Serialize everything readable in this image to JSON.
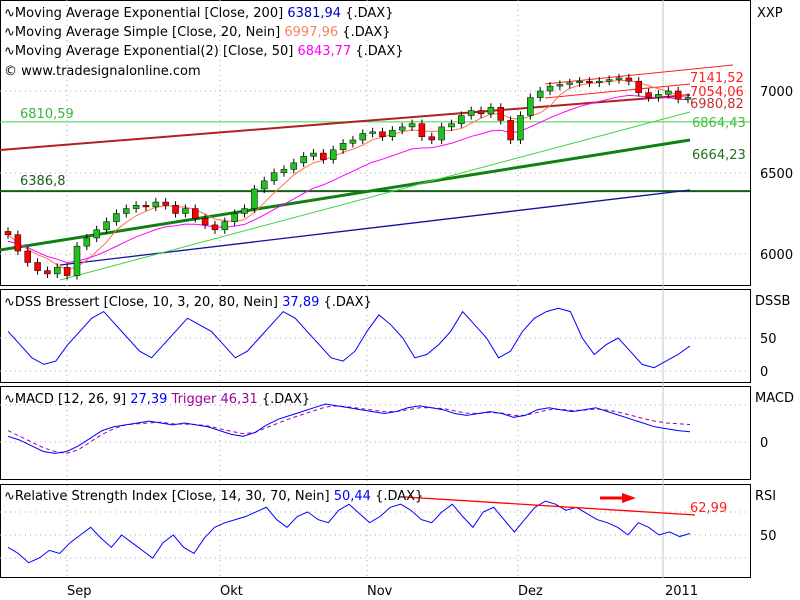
{
  "legend": [
    {
      "name": "Moving Average Exponential [Close, 200]",
      "value": "6381,94",
      "suffix": "{.DAX}",
      "color": "#0000c0"
    },
    {
      "name": "Moving Average Simple [Close, 20, Nein]",
      "value": "6997,96",
      "suffix": "{.DAX}",
      "color": "#ff8060"
    },
    {
      "name": "Moving Average Exponential(2) [Close, 50]",
      "value": "6843,77",
      "suffix": "{.DAX}",
      "color": "#ff00ff"
    }
  ],
  "copyright": "© www.tradesignalonline.com",
  "main": {
    "axis_title": "XXP",
    "ticks": [
      "7000",
      "6500",
      "6000"
    ],
    "labels": {
      "l1": "7141,52",
      "l2": "7054,06",
      "l3": "6980,82",
      "l4": "6864,43",
      "l5": "6664,23",
      "h1": "6810,59",
      "h2": "6386,8"
    }
  },
  "dss": {
    "title": "DSS Bressert [Close, 10, 3, 20, 80, Nein]",
    "value": "37,89",
    "suffix": "{.DAX}",
    "axis_title": "DSSB",
    "ticks": [
      "50",
      "0"
    ]
  },
  "macd": {
    "title": "MACD [12, 26, 9]",
    "value": "27,39",
    "trigger_label": "Trigger",
    "trigger": "46,31",
    "suffix": "{.DAX}",
    "axis_title": "MACD",
    "ticks": [
      "0"
    ]
  },
  "rsi": {
    "title": "Relative Strength Index [Close, 14, 30, 70, Nein]",
    "value": "50,44",
    "suffix": "{.DAX}",
    "axis_title": "RSI",
    "ticks": [
      "50"
    ],
    "trend_label": "62,99"
  },
  "xaxis": [
    "Sep",
    "Okt",
    "Nov",
    "Dez",
    "2011"
  ],
  "chart_data": {
    "type": "candlestick",
    "closes": [
      6120,
      6020,
      5950,
      5900,
      5880,
      5920,
      5870,
      6050,
      6100,
      6150,
      6200,
      6250,
      6280,
      6300,
      6290,
      6320,
      6300,
      6250,
      6280,
      6220,
      6180,
      6150,
      6200,
      6250,
      6280,
      6400,
      6450,
      6500,
      6520,
      6560,
      6600,
      6620,
      6580,
      6640,
      6680,
      6700,
      6740,
      6750,
      6720,
      6760,
      6780,
      6800,
      6720,
      6700,
      6780,
      6800,
      6850,
      6880,
      6860,
      6900,
      6820,
      6700,
      6850,
      6960,
      7000,
      7030,
      7040,
      7050,
      7060,
      7050,
      7060,
      7070,
      7080,
      7060,
      6990,
      6960,
      6980,
      7000,
      6950,
      6960
    ],
    "dss": [
      60,
      40,
      20,
      10,
      15,
      40,
      60,
      80,
      90,
      70,
      50,
      30,
      20,
      40,
      60,
      80,
      70,
      60,
      40,
      20,
      30,
      50,
      70,
      90,
      80,
      60,
      40,
      20,
      15,
      30,
      60,
      85,
      70,
      50,
      20,
      25,
      40,
      60,
      90,
      70,
      50,
      20,
      30,
      60,
      80,
      90,
      95,
      90,
      50,
      25,
      40,
      50,
      30,
      10,
      5,
      15,
      25,
      38
    ],
    "macd": [
      15,
      5,
      -10,
      -25,
      -30,
      -25,
      -10,
      10,
      30,
      40,
      45,
      50,
      55,
      50,
      45,
      50,
      45,
      40,
      30,
      20,
      15,
      25,
      45,
      60,
      70,
      80,
      90,
      100,
      95,
      90,
      85,
      80,
      75,
      80,
      90,
      95,
      90,
      85,
      75,
      70,
      75,
      80,
      75,
      65,
      70,
      85,
      90,
      85,
      80,
      85,
      90,
      80,
      70,
      60,
      50,
      40,
      35,
      30,
      27
    ],
    "macd_trigger": [
      30,
      15,
      0,
      -15,
      -25,
      -30,
      -20,
      0,
      20,
      35,
      45,
      48,
      50,
      52,
      48,
      47,
      46,
      42,
      35,
      28,
      22,
      25,
      38,
      50,
      62,
      72,
      82,
      92,
      95,
      92,
      88,
      84,
      80,
      80,
      85,
      90,
      90,
      88,
      82,
      76,
      75,
      78,
      76,
      70,
      70,
      78,
      85,
      86,
      83,
      84,
      87,
      84,
      78,
      70,
      62,
      55,
      50,
      48,
      46
    ],
    "rsi": [
      42,
      38,
      32,
      35,
      40,
      38,
      45,
      50,
      55,
      48,
      42,
      50,
      45,
      40,
      35,
      45,
      50,
      42,
      38,
      48,
      55,
      58,
      60,
      62,
      65,
      68,
      60,
      55,
      62,
      65,
      60,
      58,
      66,
      70,
      64,
      58,
      62,
      68,
      70,
      66,
      60,
      58,
      65,
      70,
      62,
      55,
      65,
      68,
      60,
      52,
      60,
      68,
      72,
      70,
      66,
      68,
      64,
      60,
      58,
      55,
      50,
      58,
      55,
      50,
      52,
      49,
      51
    ]
  }
}
